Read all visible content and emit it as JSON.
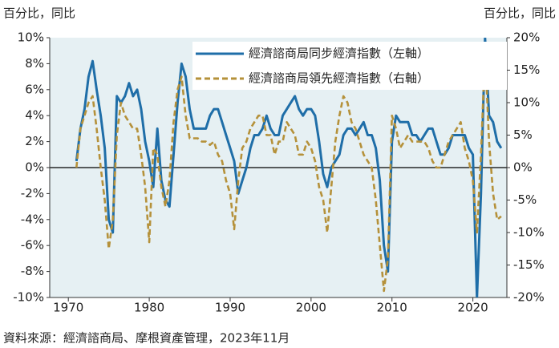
{
  "chart_data": {
    "type": "line",
    "ylabel": "百分比，同比",
    "y2label": "百分比，同比",
    "source": "資料來源：經濟諮商局、摩根資產管理，2023年11月",
    "x": [
      1971,
      1971.5,
      1972,
      1972.5,
      1973,
      1973.5,
      1974,
      1974.5,
      1975,
      1975.5,
      1976,
      1976.5,
      1977,
      1977.5,
      1978,
      1978.5,
      1979,
      1979.5,
      1980,
      1980.5,
      1981,
      1981.5,
      1982,
      1982.5,
      1983,
      1983.5,
      1984,
      1984.5,
      1985,
      1985.5,
      1986,
      1986.5,
      1987,
      1987.5,
      1988,
      1988.5,
      1989,
      1989.5,
      1990,
      1990.5,
      1991,
      1991.5,
      1992,
      1992.5,
      1993,
      1993.5,
      1994,
      1994.5,
      1995,
      1995.5,
      1996,
      1996.5,
      1997,
      1997.5,
      1998,
      1998.5,
      1999,
      1999.5,
      2000,
      2000.5,
      2001,
      2001.5,
      2002,
      2002.5,
      2003,
      2003.5,
      2004,
      2004.5,
      2005,
      2005.5,
      2006,
      2006.5,
      2007,
      2007.5,
      2008,
      2008.5,
      2009,
      2009.5,
      2010,
      2010.5,
      2011,
      2011.5,
      2012,
      2012.5,
      2013,
      2013.5,
      2014,
      2014.5,
      2015,
      2015.5,
      2016,
      2016.5,
      2017,
      2017.5,
      2018,
      2018.5,
      2019,
      2019.5,
      2020,
      2020.5,
      2021,
      2021.5,
      2022,
      2022.5,
      2023,
      2023.5
    ],
    "series": [
      {
        "name": "經濟諮商局同步經濟指數（左軸）",
        "color": "#1f6ea8",
        "axis": "y",
        "values": [
          0.5,
          3,
          4.5,
          7,
          8.2,
          6,
          4,
          1.5,
          -4,
          -5,
          5.5,
          5,
          5.5,
          6.5,
          5.5,
          6,
          4.5,
          2,
          0.5,
          -1.5,
          3,
          -1,
          -2.5,
          -3,
          1,
          5,
          8,
          7,
          4.5,
          3,
          3,
          3,
          3,
          4,
          4.5,
          4.5,
          3.5,
          2.5,
          1.5,
          0.5,
          -2,
          -1,
          0,
          1.5,
          2.5,
          2.5,
          3,
          4,
          3,
          2.5,
          2.5,
          4,
          4.5,
          5,
          5.5,
          4.5,
          4,
          4.5,
          4.5,
          4,
          2,
          -0.5,
          -1.5,
          0,
          0.5,
          1,
          2.5,
          3,
          3,
          2.5,
          3,
          3.5,
          2.5,
          2.5,
          1.5,
          -1,
          -6,
          -8,
          2,
          4,
          3.5,
          3.5,
          3.5,
          2.5,
          2.5,
          2,
          2.5,
          3,
          3,
          2,
          1,
          1,
          1.5,
          2.5,
          2.5,
          2.5,
          2.5,
          1.5,
          1,
          -10,
          -2,
          10,
          4,
          3.5,
          2,
          1.5
        ]
      },
      {
        "name": "經濟諮商局領先經濟指數（右軸）",
        "color": "#b5913a",
        "axis": "y2",
        "values": [
          0,
          6,
          8,
          10,
          11,
          6,
          0,
          -5,
          -12.5,
          -8,
          5,
          10,
          8,
          7,
          6,
          6,
          2,
          -3,
          -11.5,
          3,
          2,
          -3,
          -6,
          -2,
          7,
          12,
          14,
          8,
          4.5,
          4.5,
          4.5,
          4,
          4,
          3.5,
          4,
          2,
          1,
          -2,
          -4,
          -9.5,
          -2,
          3,
          4,
          6,
          7,
          8,
          8,
          5,
          5,
          2,
          4,
          4,
          7,
          6,
          5,
          2,
          2,
          4,
          3,
          1,
          -3,
          -5,
          -10,
          -3,
          4,
          8,
          11,
          10,
          7,
          6,
          4,
          2,
          1,
          0,
          -5,
          -12,
          -19,
          -14,
          8,
          6,
          3,
          4,
          5,
          4,
          4,
          4,
          4,
          3,
          1,
          0,
          0,
          2,
          4,
          5,
          6,
          7,
          3,
          1,
          -2,
          -10,
          2,
          18,
          4,
          -4,
          -8,
          -7.5
        ]
      }
    ],
    "xlim": [
      1967.7,
      2024.2
    ],
    "xticks": [
      1970,
      1980,
      1990,
      2000,
      2010,
      2020
    ],
    "ylim": [
      -10,
      10
    ],
    "yticks": [
      {
        "value": -10,
        "label": "-10%"
      },
      {
        "value": -8,
        "label": "-8%"
      },
      {
        "value": -6,
        "label": "-6%"
      },
      {
        "value": -4,
        "label": "-4%"
      },
      {
        "value": -2,
        "label": "-2%"
      },
      {
        "value": 0,
        "label": "0%"
      },
      {
        "value": 2,
        "label": "2%"
      },
      {
        "value": 4,
        "label": "4%"
      },
      {
        "value": 6,
        "label": "6%"
      },
      {
        "value": 8,
        "label": "8%"
      },
      {
        "value": 10,
        "label": "10%"
      }
    ],
    "y2lim": [
      -20,
      20
    ],
    "y2ticks": [
      {
        "value": -20,
        "label": "-20%"
      },
      {
        "value": -15,
        "label": "-15%"
      },
      {
        "value": -10,
        "label": "-10%"
      },
      {
        "value": -5,
        "label": "-5%"
      },
      {
        "value": 0,
        "label": "0%"
      },
      {
        "value": 5,
        "label": "5%"
      },
      {
        "value": 10,
        "label": "10%"
      },
      {
        "value": 15,
        "label": "15%"
      },
      {
        "value": 20,
        "label": "20%"
      }
    ],
    "legend": "top-right"
  }
}
